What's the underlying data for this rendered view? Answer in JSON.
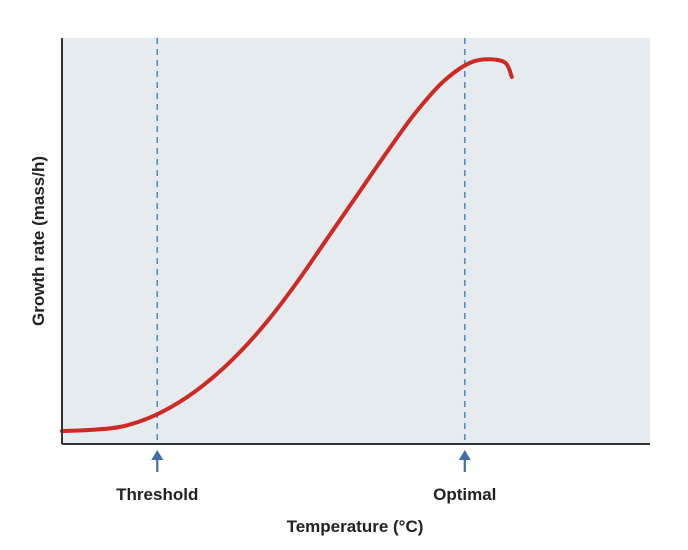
{
  "chart_data": {
    "type": "line",
    "xlabel": "Temperature (°C)",
    "ylabel": "Growth rate (mass/h)",
    "xlim": [
      0,
      100
    ],
    "ylim": [
      0,
      100
    ],
    "grid": false,
    "legend": "none",
    "x_ticks_shown": false,
    "y_ticks_shown": false,
    "series": [
      {
        "color": "#cc2a22",
        "x": [
          0,
          5,
          10,
          15,
          20,
          25,
          30,
          35,
          40,
          45,
          50,
          55,
          60,
          65,
          70,
          75,
          76.5
        ],
        "y": [
          0,
          0.3,
          1.1,
          3.5,
          7.5,
          13,
          20,
          28.5,
          38.5,
          49.5,
          60.5,
          71.5,
          82,
          90.5,
          95.5,
          95.5,
          91.5
        ]
      }
    ],
    "annotations": [
      {
        "label": "Threshold",
        "x": 16.2,
        "style": "dashed-vertical",
        "arrow": "up"
      },
      {
        "label": "Optimal",
        "x": 68.5,
        "style": "dashed-vertical",
        "arrow": "up"
      }
    ],
    "colors": {
      "plot_background": "#e5ebee",
      "curve": "#cc2a22",
      "dashed_line": "#5a8fb4",
      "arrow": "#3f6fa8",
      "axis": "#333333"
    }
  }
}
